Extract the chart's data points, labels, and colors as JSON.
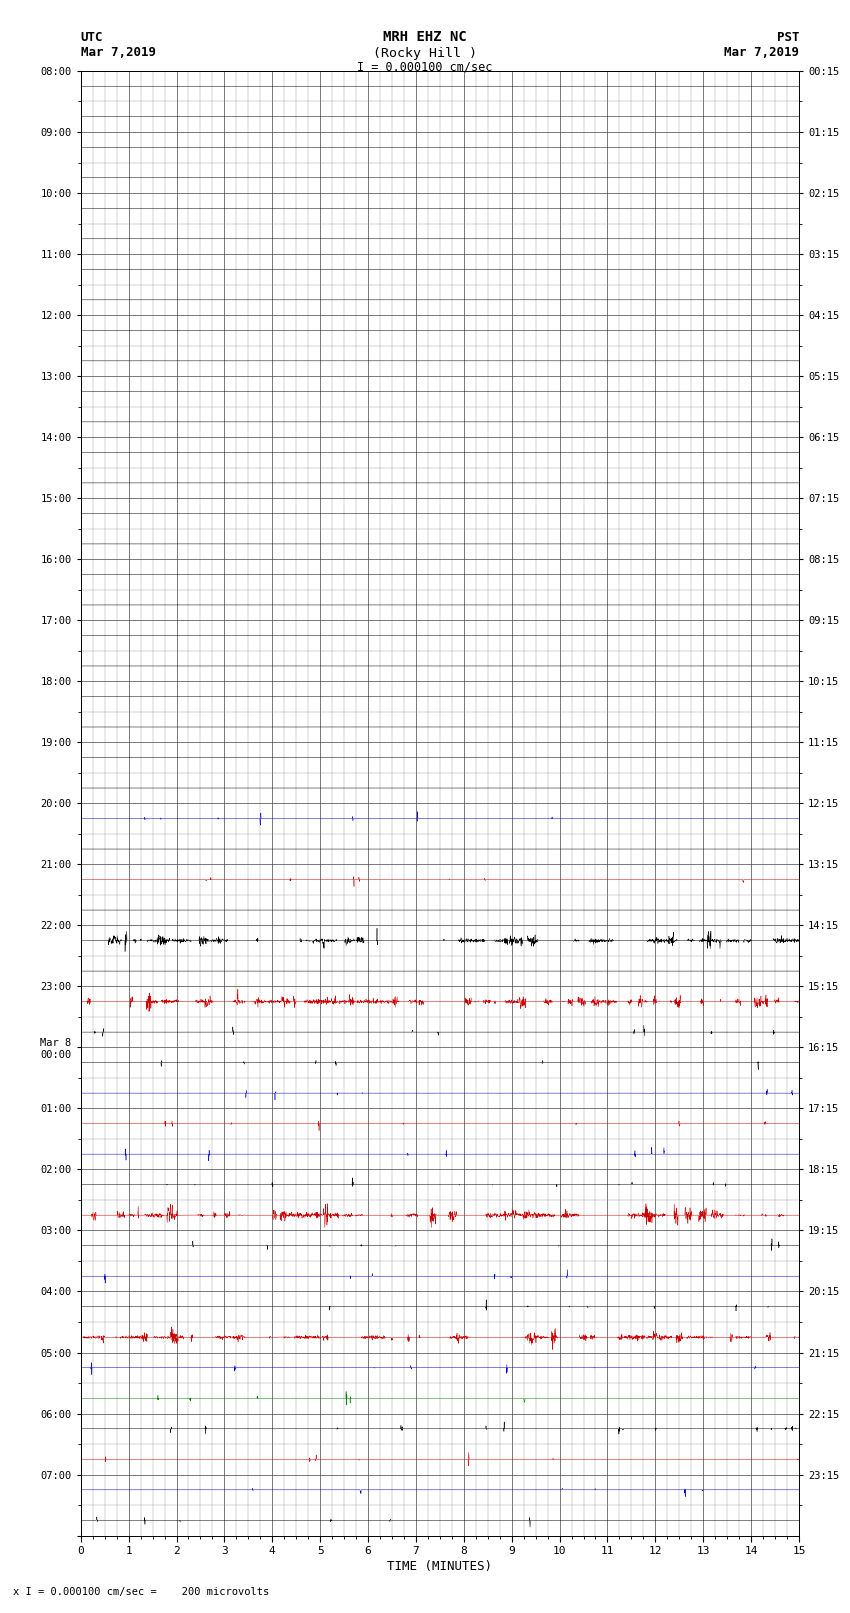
{
  "title_line1": "MRH EHZ NC",
  "title_line2": "(Rocky Hill )",
  "scale_label": "I = 0.000100 cm/sec",
  "left_label_top": "UTC",
  "left_label_date": "Mar 7,2019",
  "right_label_top": "PST",
  "right_label_date": "Mar 7,2019",
  "bottom_note": "x I = 0.000100 cm/sec =    200 microvolts",
  "xlabel": "TIME (MINUTES)",
  "utc_labels": [
    "08:00",
    "09:00",
    "10:00",
    "11:00",
    "12:00",
    "13:00",
    "14:00",
    "15:00",
    "16:00",
    "17:00",
    "18:00",
    "19:00",
    "20:00",
    "21:00",
    "22:00",
    "23:00",
    "Mar 8\n00:00",
    "01:00",
    "02:00",
    "03:00",
    "04:00",
    "05:00",
    "06:00",
    "07:00"
  ],
  "pst_labels": [
    "00:15",
    "01:15",
    "02:15",
    "03:15",
    "04:15",
    "05:15",
    "06:15",
    "07:15",
    "08:15",
    "09:15",
    "10:15",
    "11:15",
    "12:15",
    "13:15",
    "14:15",
    "15:15",
    "16:15",
    "17:15",
    "18:15",
    "19:15",
    "20:15",
    "21:15",
    "22:15",
    "23:15"
  ],
  "n_hour_rows": 24,
  "sub_rows_per_hour": 2,
  "minutes_per_row": 15,
  "background_color": "#ffffff",
  "rows": [
    {
      "color": "#000000",
      "amp": 0.02,
      "dc": 0.0
    },
    {
      "color": "#000000",
      "amp": 0.02,
      "dc": 0.0
    },
    {
      "color": "#000000",
      "amp": 0.02,
      "dc": 0.0
    },
    {
      "color": "#000000",
      "amp": 0.02,
      "dc": 0.0
    },
    {
      "color": "#000000",
      "amp": 0.02,
      "dc": 0.0
    },
    {
      "color": "#000000",
      "amp": 0.02,
      "dc": 0.0
    },
    {
      "color": "#000000",
      "amp": 0.02,
      "dc": 0.0
    },
    {
      "color": "#000000",
      "amp": 0.02,
      "dc": 0.0
    },
    {
      "color": "#000000",
      "amp": 0.02,
      "dc": 0.0
    },
    {
      "color": "#000000",
      "amp": 0.02,
      "dc": 0.0
    },
    {
      "color": "#000000",
      "amp": 0.02,
      "dc": 0.0
    },
    {
      "color": "#000000",
      "amp": 0.02,
      "dc": 0.0
    },
    {
      "color": "#000000",
      "amp": 0.02,
      "dc": 0.0
    },
    {
      "color": "#000000",
      "amp": 0.02,
      "dc": 0.0
    },
    {
      "color": "#000000",
      "amp": 0.02,
      "dc": 0.0
    },
    {
      "color": "#000000",
      "amp": 0.02,
      "dc": 0.0
    },
    {
      "color": "#000000",
      "amp": 0.02,
      "dc": 0.0
    },
    {
      "color": "#000000",
      "amp": 0.02,
      "dc": 0.0
    },
    {
      "color": "#000000",
      "amp": 0.02,
      "dc": 0.0
    },
    {
      "color": "#000000",
      "amp": 0.02,
      "dc": 0.0
    },
    {
      "color": "#000000",
      "amp": 0.02,
      "dc": 0.0
    },
    {
      "color": "#000000",
      "amp": 0.02,
      "dc": 0.0
    },
    {
      "color": "#000000",
      "amp": 0.02,
      "dc": 0.0
    },
    {
      "color": "#000000",
      "amp": 0.02,
      "dc": 0.0
    },
    {
      "color": "#0000cc",
      "amp": 0.08,
      "dc": 0.0
    },
    {
      "color": "#000000",
      "amp": 0.02,
      "dc": 0.0
    },
    {
      "color": "#cc0000",
      "amp": 0.12,
      "dc": 0.0
    },
    {
      "color": "#000000",
      "amp": 0.02,
      "dc": 0.0
    },
    {
      "color": "#000000",
      "amp": 0.85,
      "dc": 0.0
    },
    {
      "color": "#000000",
      "amp": 0.02,
      "dc": 0.0
    },
    {
      "color": "#cc0000",
      "amp": 0.85,
      "dc": 0.0
    },
    {
      "color": "#000000",
      "amp": 0.18,
      "dc": 0.0
    },
    {
      "color": "#000000",
      "amp": 0.12,
      "dc": 0.0
    },
    {
      "color": "#0000cc",
      "amp": 0.08,
      "dc": 0.0
    },
    {
      "color": "#cc0000",
      "amp": 0.12,
      "dc": 0.0
    },
    {
      "color": "#0000cc",
      "amp": 0.08,
      "dc": 0.0
    },
    {
      "color": "#000000",
      "amp": 0.18,
      "dc": 0.0
    },
    {
      "color": "#cc0000",
      "amp": 0.85,
      "dc": 0.0
    },
    {
      "color": "#000000",
      "amp": 0.12,
      "dc": 0.0
    },
    {
      "color": "#0000cc",
      "amp": 0.08,
      "dc": 0.0
    },
    {
      "color": "#000000",
      "amp": 0.12,
      "dc": 0.0
    },
    {
      "color": "#cc0000",
      "amp": 0.85,
      "dc": 0.0
    },
    {
      "color": "#0000cc",
      "amp": 0.08,
      "dc": 0.0
    },
    {
      "color": "#008000",
      "amp": 0.08,
      "dc": 0.0
    },
    {
      "color": "#000000",
      "amp": 0.25,
      "dc": 0.0
    },
    {
      "color": "#cc0000",
      "amp": 0.08,
      "dc": 0.0
    },
    {
      "color": "#0000cc",
      "amp": 0.08,
      "dc": 0.0
    },
    {
      "color": "#000000",
      "amp": 0.06,
      "dc": 0.0
    }
  ]
}
